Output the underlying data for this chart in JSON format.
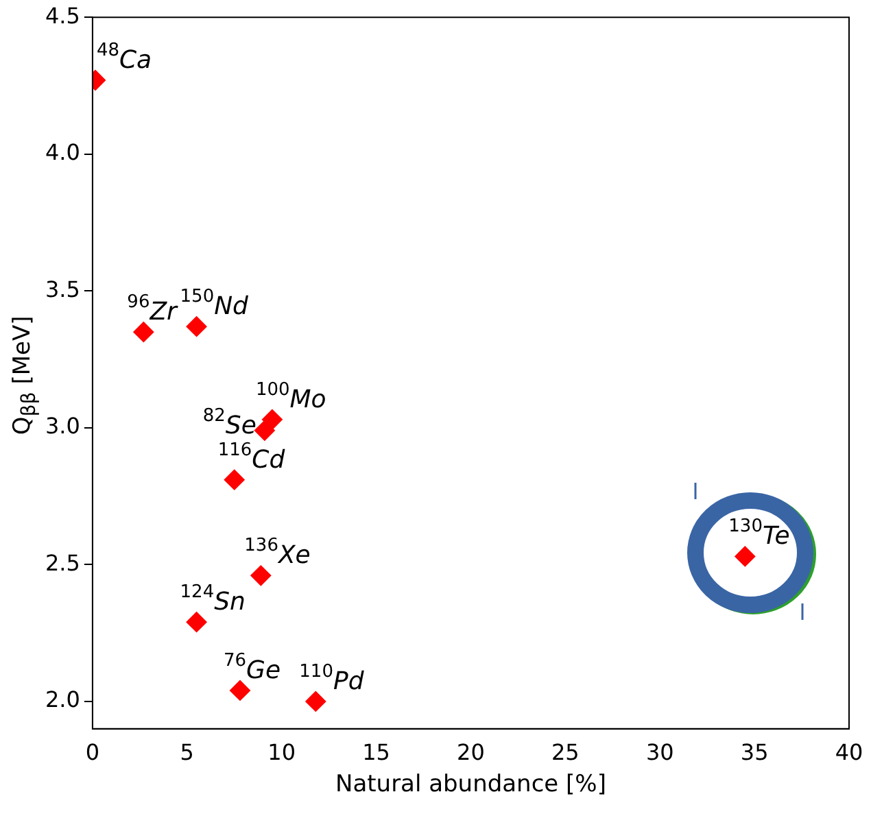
{
  "chart_data": {
    "type": "scatter",
    "xlabel": "Natural abundance [%]",
    "ylabel": "Q$_{ββ}$ [MeV]",
    "x": [
      0.15,
      2.7,
      5.5,
      9.5,
      9.1,
      7.5,
      8.9,
      5.5,
      7.8,
      11.8,
      34.5
    ],
    "values": [
      4.27,
      3.35,
      3.37,
      3.03,
      2.99,
      2.81,
      2.46,
      2.29,
      2.04,
      2.0,
      2.53
    ],
    "color": "#ff0000",
    "marker": "diamond",
    "grid": false,
    "legend": false,
    "xlim": [
      0,
      40
    ],
    "xticks": [
      0,
      5,
      10,
      15,
      20,
      25,
      30,
      35,
      40
    ],
    "ylim": [
      1.9,
      4.5
    ],
    "yticks": [
      {
        "value": 2.0,
        "label": "2.0"
      },
      {
        "value": 2.5,
        "label": "2.5"
      },
      {
        "value": 3.0,
        "label": "3.0"
      },
      {
        "value": 3.5,
        "label": "3.5"
      },
      {
        "value": 4.0,
        "label": "4.0"
      },
      {
        "value": 4.5,
        "label": "4.5"
      }
    ],
    "annotations": [
      {
        "text": "$^{48}$Ca",
        "x": 0.15,
        "y": 4.27
      },
      {
        "text": "$^{96}$Zr",
        "x": 2.7,
        "y": 3.35
      },
      {
        "text": "$^{150}$Nd",
        "x": 5.5,
        "y": 3.37
      },
      {
        "text": "$^{100}$Mo",
        "x": 9.5,
        "y": 3.03
      },
      {
        "text": "$^{82}$Se",
        "x": 9.1,
        "y": 2.99
      },
      {
        "text": "$^{116}$Cd",
        "x": 7.5,
        "y": 2.81
      },
      {
        "text": "$^{136}$Xe",
        "x": 8.9,
        "y": 2.46
      },
      {
        "text": "$^{124}$Sn",
        "x": 5.5,
        "y": 2.29
      },
      {
        "text": "$^{76}$Ge",
        "x": 7.8,
        "y": 2.04
      },
      {
        "text": "$^{110}$Pd",
        "x": 11.8,
        "y": 2.0
      },
      {
        "text": "$^{130}$Te",
        "x": 34.5,
        "y": 2.53
      }
    ]
  }
}
